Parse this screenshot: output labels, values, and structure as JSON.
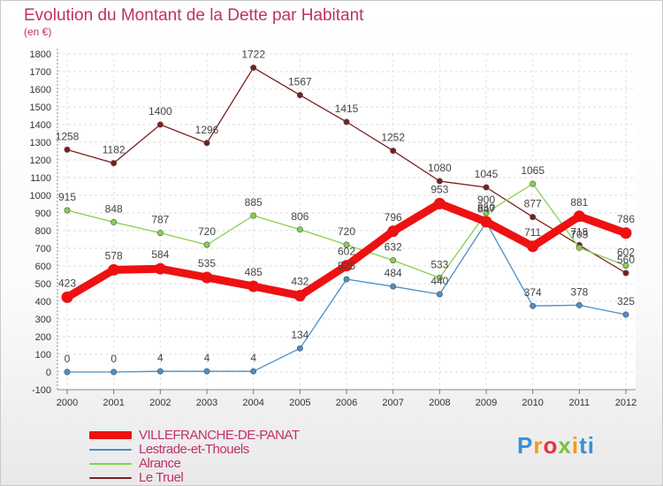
{
  "title": "Evolution du Montant de la Dette par Habitant",
  "unit": "(en €)",
  "brand": "Proxiti",
  "chart_data": {
    "type": "line",
    "x": [
      "2000",
      "2001",
      "2002",
      "2003",
      "2004",
      "2005",
      "2006",
      "2007",
      "2008",
      "2009",
      "2010",
      "2011",
      "2012"
    ],
    "ylim": [
      -100,
      1800
    ],
    "yticks": [
      -100,
      0,
      100,
      200,
      300,
      400,
      500,
      600,
      700,
      800,
      900,
      1000,
      1100,
      1200,
      1300,
      1400,
      1500,
      1600,
      1700,
      1800
    ],
    "grid": true,
    "legend": "bottom-left",
    "series": [
      {
        "name": "VILLEFRANCHE-DE-PANAT",
        "color": "#ee1111",
        "values": [
          423,
          578,
          584,
          535,
          485,
          432,
          602,
          796,
          953,
          850,
          711,
          881,
          786
        ]
      },
      {
        "name": "Lestrade-et-Thouels",
        "color": "#4a8fc9",
        "values": [
          0,
          0,
          4,
          4,
          4,
          134,
          525,
          484,
          440,
          847,
          374,
          378,
          325
        ]
      },
      {
        "name": "Alrance",
        "color": "#88d04a",
        "values": [
          915,
          848,
          787,
          720,
          885,
          806,
          720,
          632,
          533,
          900,
          1065,
          703,
          602
        ]
      },
      {
        "name": "Le Truel",
        "color": "#7a1f1f",
        "values": [
          1258,
          1182,
          1400,
          1296,
          1722,
          1567,
          1415,
          1252,
          1080,
          1045,
          877,
          718,
          560
        ]
      }
    ]
  }
}
